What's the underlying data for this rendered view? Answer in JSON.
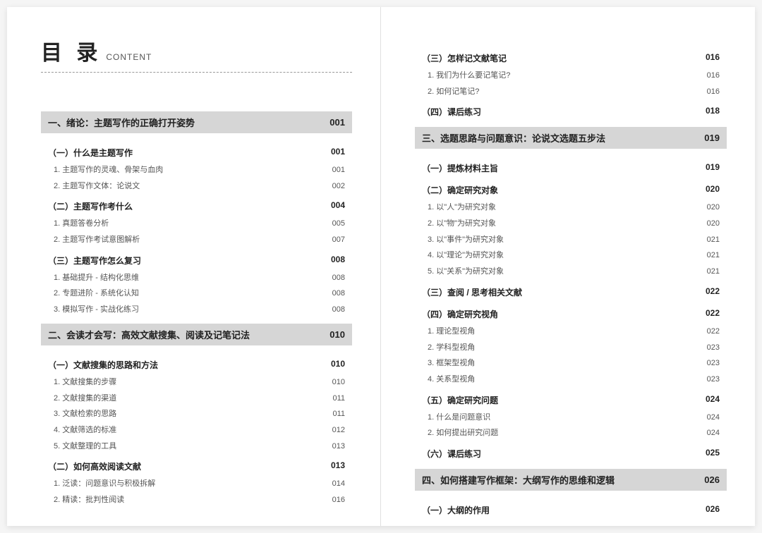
{
  "title": {
    "main": "目 录",
    "sub": "CONTENT"
  },
  "left": [
    {
      "type": "chapter",
      "title": "一、绪论：主题写作的正确打开姿势",
      "page": "001"
    },
    {
      "type": "section",
      "title": "（一）什么是主题写作",
      "page": "001"
    },
    {
      "type": "sub",
      "title": "1. 主题写作的灵魂、骨架与血肉",
      "page": "001"
    },
    {
      "type": "sub",
      "title": "2. 主题写作文体：论说文",
      "page": "002"
    },
    {
      "type": "section",
      "title": "（二）主题写作考什么",
      "page": "004"
    },
    {
      "type": "sub",
      "title": "1. 真题答卷分析",
      "page": "005"
    },
    {
      "type": "sub",
      "title": "2. 主题写作考试意图解析",
      "page": "007"
    },
    {
      "type": "section",
      "title": "（三）主题写作怎么复习",
      "page": "008"
    },
    {
      "type": "sub",
      "title": "1. 基础提升 - 结构化思维",
      "page": "008"
    },
    {
      "type": "sub",
      "title": "2. 专题进阶 - 系统化认知",
      "page": "008"
    },
    {
      "type": "sub",
      "title": "3. 模拟写作 - 实战化练习",
      "page": "008"
    },
    {
      "type": "chapter",
      "title": "二、会读才会写：高效文献搜集、阅读及记笔记法",
      "page": "010"
    },
    {
      "type": "section",
      "title": "（一）文献搜集的思路和方法",
      "page": "010"
    },
    {
      "type": "sub",
      "title": "1. 文献搜集的步骤",
      "page": "010"
    },
    {
      "type": "sub",
      "title": "2. 文献搜集的渠道",
      "page": "011"
    },
    {
      "type": "sub",
      "title": "3. 文献检索的思路",
      "page": "011"
    },
    {
      "type": "sub",
      "title": "4. 文献筛选的标准",
      "page": "012"
    },
    {
      "type": "sub",
      "title": "5. 文献整理的工具",
      "page": "013"
    },
    {
      "type": "section",
      "title": "（二）如何高效阅读文献",
      "page": "013"
    },
    {
      "type": "sub",
      "title": "1. 泛读：问题意识与积极拆解",
      "page": "014"
    },
    {
      "type": "sub",
      "title": "2. 精读：批判性阅读",
      "page": "016"
    }
  ],
  "right": [
    {
      "type": "section",
      "title": "（三）怎样记文献笔记",
      "page": "016"
    },
    {
      "type": "sub",
      "title": "1. 我们为什么要记笔记?",
      "page": "016"
    },
    {
      "type": "sub",
      "title": "2. 如何记笔记?",
      "page": "016"
    },
    {
      "type": "section",
      "title": "（四）课后练习",
      "page": "018"
    },
    {
      "type": "chapter",
      "title": "三、选题思路与问题意识：论说文选题五步法",
      "page": "019"
    },
    {
      "type": "section",
      "title": "（一）提炼材料主旨",
      "page": "019"
    },
    {
      "type": "section",
      "title": "（二）确定研究对象",
      "page": "020"
    },
    {
      "type": "sub",
      "title": "1. 以\"人\"为研究对象",
      "page": "020"
    },
    {
      "type": "sub",
      "title": "2. 以\"物\"为研究对象",
      "page": "020"
    },
    {
      "type": "sub",
      "title": "3. 以\"事件\"为研究对象",
      "page": "021"
    },
    {
      "type": "sub",
      "title": "4. 以\"理论\"为研究对象",
      "page": "021"
    },
    {
      "type": "sub",
      "title": "5. 以\"关系\"为研究对象",
      "page": "021"
    },
    {
      "type": "section",
      "title": "（三）查阅 / 思考相关文献",
      "page": "022"
    },
    {
      "type": "section",
      "title": "（四）确定研究视角",
      "page": "022"
    },
    {
      "type": "sub",
      "title": "1. 理论型视角",
      "page": "022"
    },
    {
      "type": "sub",
      "title": "2. 学科型视角",
      "page": "023"
    },
    {
      "type": "sub",
      "title": "3. 框架型视角",
      "page": "023"
    },
    {
      "type": "sub",
      "title": "4. 关系型视角",
      "page": "023"
    },
    {
      "type": "section",
      "title": "（五）确定研究问题",
      "page": "024"
    },
    {
      "type": "sub",
      "title": "1. 什么是问题意识",
      "page": "024"
    },
    {
      "type": "sub",
      "title": "2. 如何提出研究问题",
      "page": "024"
    },
    {
      "type": "section",
      "title": "（六）课后练习",
      "page": "025"
    },
    {
      "type": "chapter",
      "title": "四、如何搭建写作框架：大纲写作的思维和逻辑",
      "page": "026"
    },
    {
      "type": "section",
      "title": "（一）大纲的作用",
      "page": "026"
    }
  ]
}
